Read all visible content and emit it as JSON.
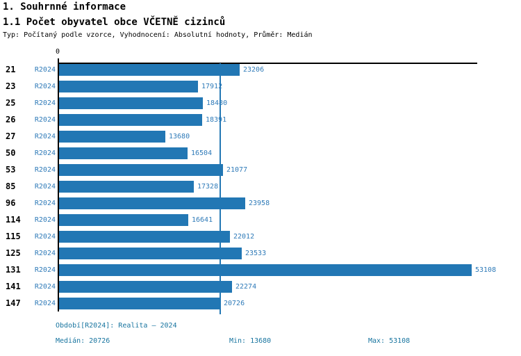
{
  "header": {
    "title": "1. Souhrnné informace",
    "subtitle": "1.1 Počet obyvatel obce VČETNĚ cizinců",
    "meta": "Typ: Počítaný podle vzorce, Vyhodnocení: Absolutní hodnoty, Průměr: Medián"
  },
  "axis": {
    "zero_label": "0"
  },
  "chart_data": {
    "type": "bar",
    "orientation": "horizontal",
    "title": "1.1 Počet obyvatel obce VČETNĚ cizinců",
    "categories": [
      "21",
      "23",
      "25",
      "26",
      "27",
      "50",
      "53",
      "85",
      "96",
      "114",
      "115",
      "125",
      "131",
      "141",
      "147"
    ],
    "series": [
      {
        "name": "R2024",
        "values": [
          23206,
          17912,
          18480,
          18391,
          13680,
          16504,
          21077,
          17328,
          23958,
          16641,
          22012,
          23533,
          53108,
          22274,
          20726
        ]
      }
    ],
    "value_labels": [
      23206,
      17912,
      18480,
      18391,
      13680,
      16504,
      21077,
      17328,
      23958,
      16641,
      22012,
      23533,
      53108,
      22274,
      20726
    ],
    "xlim": [
      0,
      54000
    ],
    "median": 20726,
    "min": 13680,
    "max": 53108,
    "median_line": true,
    "grid": false,
    "legend": false
  },
  "footer": {
    "period": "Období[R2024]: Realita – 2024",
    "median": "Medián: 20726",
    "min": "Min: 13680",
    "max": "Max: 53108"
  },
  "colors": {
    "bar": "#2277b4",
    "chart_text": "#2e7ab8",
    "footer_text": "#17749f",
    "axis": "#000000"
  }
}
